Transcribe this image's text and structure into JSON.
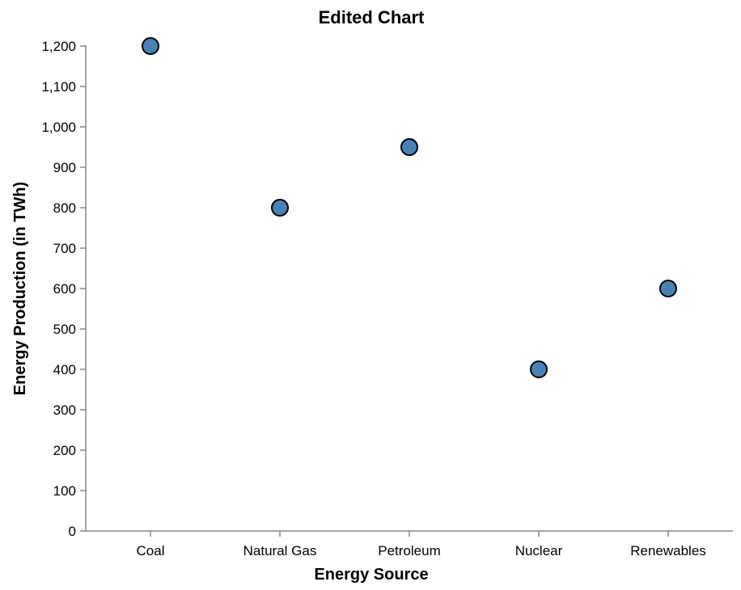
{
  "chart_data": {
    "type": "scatter",
    "title": "Edited Chart",
    "xlabel": "Energy Source",
    "ylabel": "Energy Production (in TWh)",
    "categories": [
      "Coal",
      "Natural Gas",
      "Petroleum",
      "Nuclear",
      "Renewables"
    ],
    "values": [
      1200,
      800,
      950,
      400,
      600
    ],
    "ylim": [
      0,
      1200
    ],
    "yticks": [
      0,
      100,
      200,
      300,
      400,
      500,
      600,
      700,
      800,
      900,
      1000,
      1100,
      1200
    ],
    "ytick_labels": [
      "0",
      "100",
      "200",
      "300",
      "400",
      "500",
      "600",
      "700",
      "800",
      "900",
      "1,000",
      "1,100",
      "1,200"
    ],
    "grid": false,
    "legend": "none",
    "colors": {
      "point_fill": "#4682b4",
      "point_stroke": "#000000",
      "axis": "#888888"
    }
  }
}
